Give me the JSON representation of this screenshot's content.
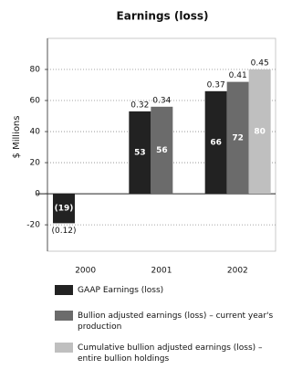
{
  "chart_data": {
    "type": "bar",
    "title": "Earnings (loss)",
    "y_label": "$ Millions",
    "categories": [
      "2000",
      "2001",
      "2002"
    ],
    "series": [
      {
        "name": "GAAP Earnings (loss)",
        "color": "#222222",
        "values": [
          -19,
          53,
          66
        ],
        "value_labels": [
          "(19)",
          "53",
          "66"
        ],
        "share_labels": [
          "(0.12)",
          "0.32",
          "0.37"
        ]
      },
      {
        "name": "Bullion adjusted earnings (loss) – current year's production",
        "color": "#6b6b6b",
        "values": [
          null,
          56,
          72
        ],
        "share_labels": [
          null,
          "0.34",
          "0.41"
        ]
      },
      {
        "name": "Cumulative bullion adjusted earnings (loss) – entire bullion holdings",
        "color": "#bfbfbf",
        "values": [
          null,
          null,
          80
        ],
        "share_labels": [
          null,
          null,
          "0.45"
        ]
      }
    ],
    "ylim": [
      -37,
      100
    ],
    "yticks": [
      -20,
      0,
      20,
      40,
      60,
      80
    ],
    "grid": true
  }
}
